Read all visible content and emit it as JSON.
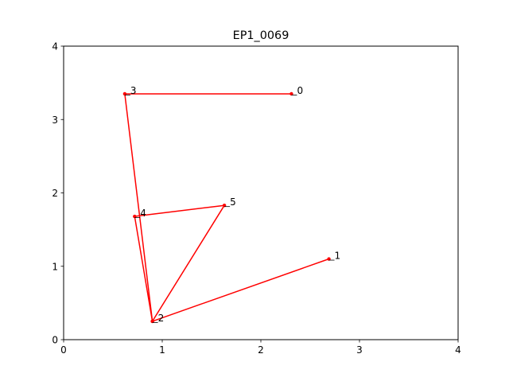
{
  "chart_data": {
    "type": "line",
    "title": "EP1_0069",
    "xlabel": "",
    "ylabel": "",
    "xlim": [
      0,
      4
    ],
    "ylim": [
      0,
      4
    ],
    "xticks": [
      "0",
      "1",
      "2",
      "3",
      "4"
    ],
    "yticks": [
      "0",
      "1",
      "2",
      "3",
      "4"
    ],
    "grid": false,
    "series": [
      {
        "color": "#ff0000",
        "points": [
          {
            "label": "0",
            "x": 2.31,
            "y": 3.35
          },
          {
            "label": "3",
            "x": 0.62,
            "y": 3.35
          },
          {
            "label": "2",
            "x": 0.9,
            "y": 0.25
          },
          {
            "label": "5",
            "x": 1.63,
            "y": 1.83
          },
          {
            "label": "4",
            "x": 0.72,
            "y": 1.68
          },
          {
            "label": "2",
            "x": 0.9,
            "y": 0.25
          },
          {
            "label": "1",
            "x": 2.69,
            "y": 1.1
          }
        ]
      }
    ],
    "point_labels": [
      {
        "label": "0",
        "x": 2.31,
        "y": 3.35
      },
      {
        "label": "1",
        "x": 2.69,
        "y": 1.1
      },
      {
        "label": "2",
        "x": 0.9,
        "y": 0.25
      },
      {
        "label": "3",
        "x": 0.62,
        "y": 3.35
      },
      {
        "label": "4",
        "x": 0.72,
        "y": 1.68
      },
      {
        "label": "5",
        "x": 1.63,
        "y": 1.83
      }
    ]
  }
}
